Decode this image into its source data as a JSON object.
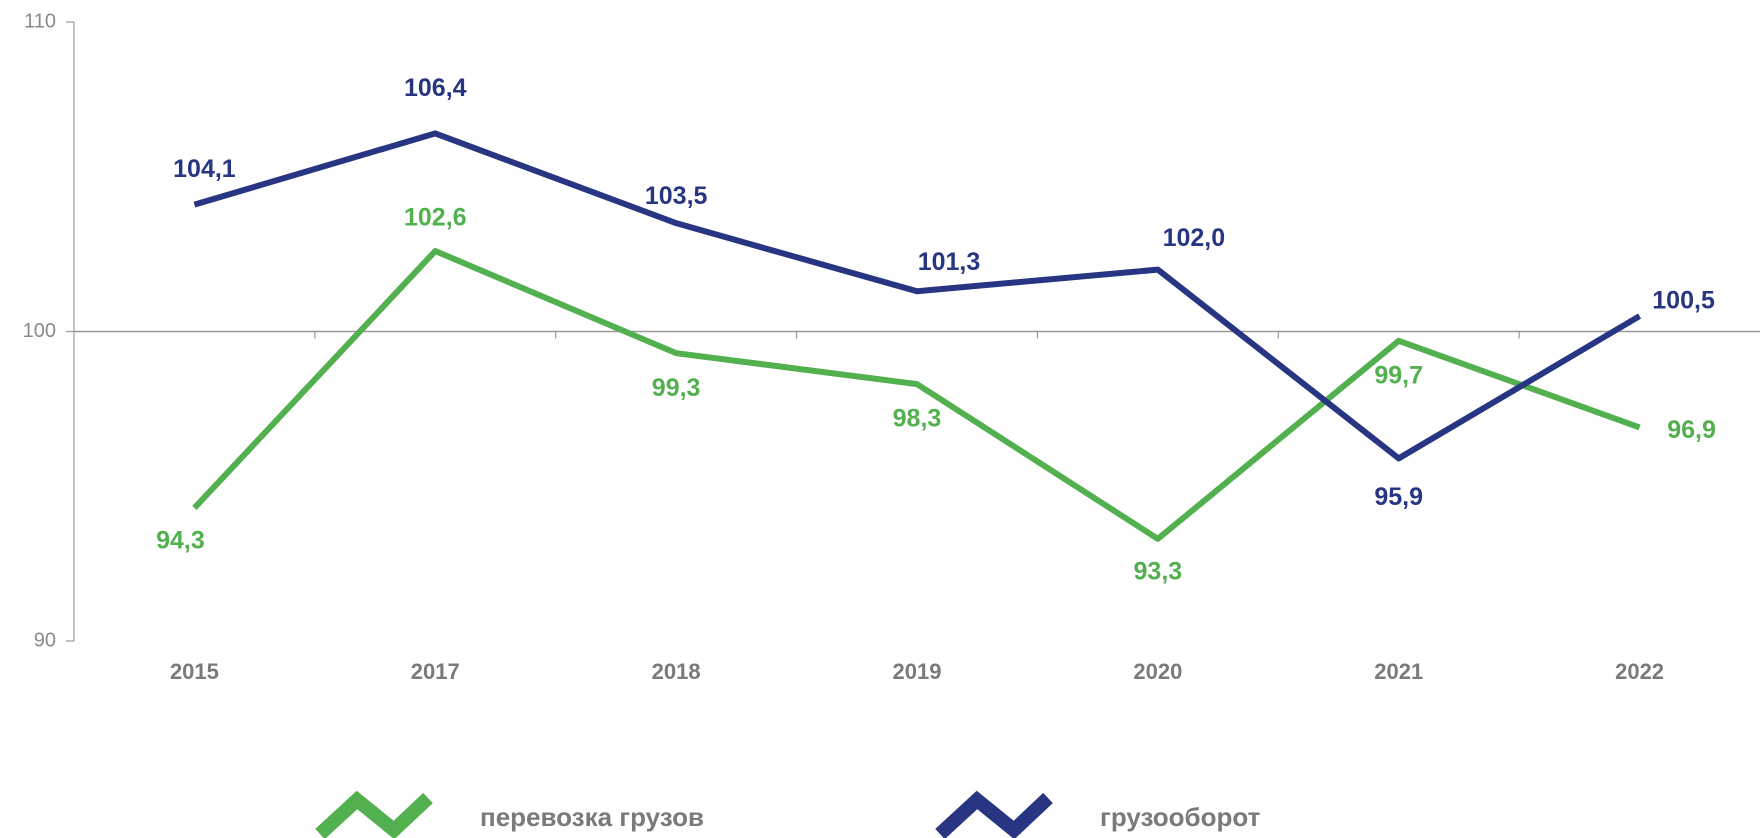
{
  "chart_data": {
    "type": "line",
    "categories": [
      "2015",
      "2017",
      "2018",
      "2019",
      "2020",
      "2021",
      "2022"
    ],
    "series": [
      {
        "name": "перевозка грузов",
        "color": "#52b04f",
        "values": [
          94.3,
          102.6,
          99.3,
          98.3,
          93.3,
          99.7,
          96.9
        ],
        "value_labels": [
          "94,3",
          "102,6",
          "99,3",
          "98,3",
          "93,3",
          "99,7",
          "96,9"
        ]
      },
      {
        "name": "грузооборот",
        "color": "#283583",
        "values": [
          104.1,
          106.4,
          103.5,
          101.3,
          102.0,
          95.9,
          100.5
        ],
        "value_labels": [
          "104,1",
          "106,4",
          "103,5",
          "101,3",
          "102,0",
          "95,9",
          "100,5"
        ]
      }
    ],
    "ylim": [
      90,
      110
    ],
    "yticks": [
      90,
      100,
      110
    ],
    "legend": "bottom"
  }
}
